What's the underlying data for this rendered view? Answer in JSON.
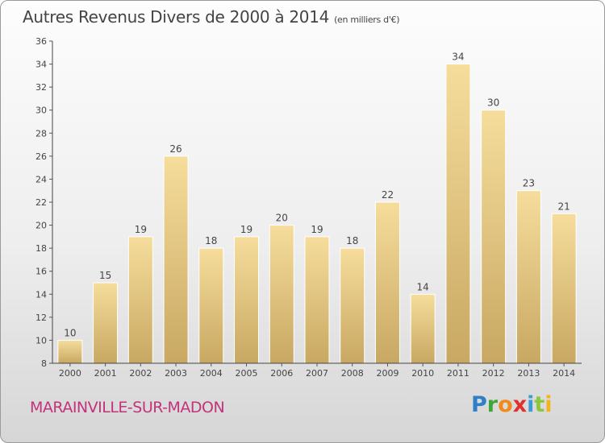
{
  "header": {
    "title": "Autres Revenus Divers de 2000 à 2014",
    "unit": "(en milliers d'€)"
  },
  "footer": {
    "commune": "MARAINVILLE-SUR-MADON",
    "logo": [
      "P",
      "r",
      "o",
      "x",
      "i",
      "t",
      "i"
    ]
  },
  "colors": {
    "bar_light": "#f6dd9c",
    "bar_dark": "#c8a862",
    "title": "#444444",
    "commune": "#c2337a"
  },
  "chart_data": {
    "type": "bar",
    "categories": [
      "2000",
      "2001",
      "2002",
      "2003",
      "2004",
      "2005",
      "2006",
      "2007",
      "2008",
      "2009",
      "2010",
      "2011",
      "2012",
      "2013",
      "2014"
    ],
    "values": [
      10,
      15,
      19,
      26,
      18,
      19,
      20,
      19,
      18,
      22,
      14,
      34,
      30,
      23,
      21
    ],
    "title": "Autres Revenus Divers de 2000 à 2014",
    "ylim": [
      8,
      36
    ],
    "yticks": [
      8,
      10,
      12,
      14,
      16,
      18,
      20,
      22,
      24,
      26,
      28,
      30,
      32,
      34,
      36
    ],
    "grid": false,
    "data_labels": true
  }
}
